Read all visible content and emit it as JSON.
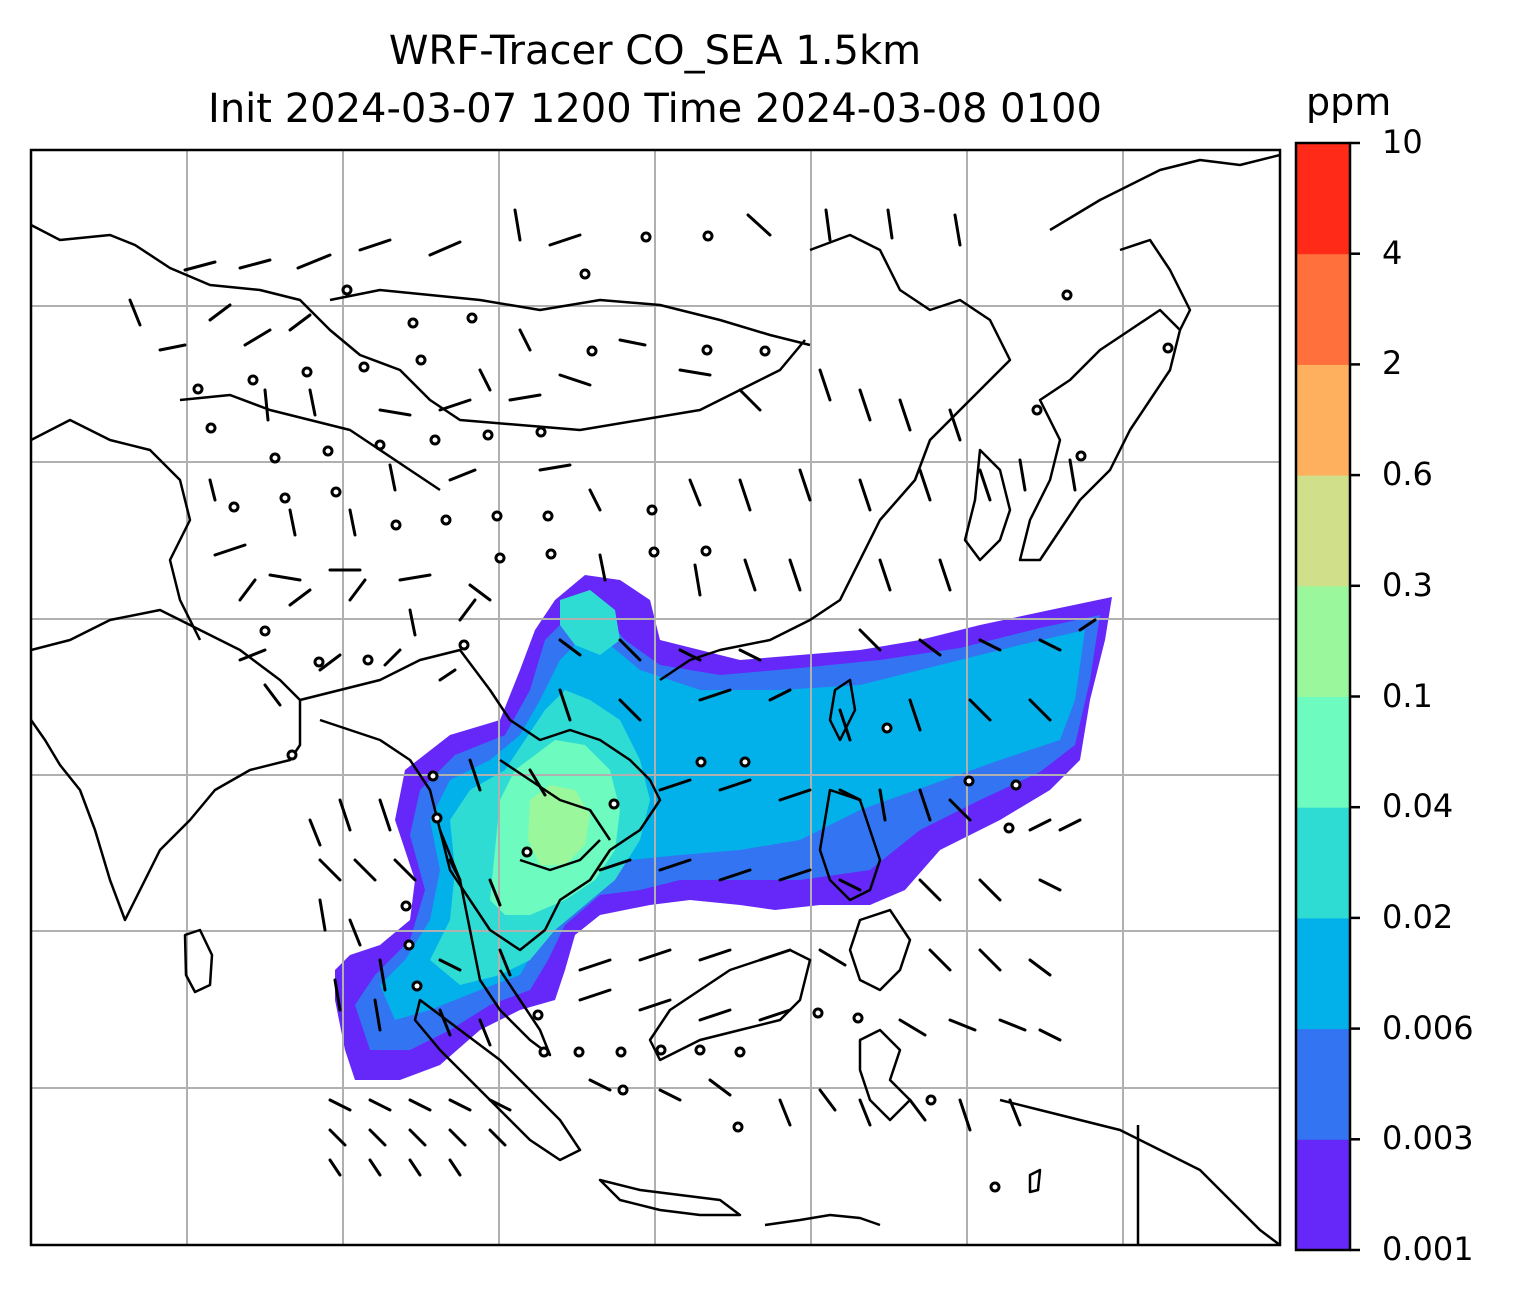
{
  "title": {
    "line1": "WRF-Tracer CO_SEA 1.5km",
    "line2": "Init 2024-03-07 1200 Time 2024-03-08 0100"
  },
  "colorbar": {
    "unit": "ppm",
    "levels": [
      "0.001",
      "0.003",
      "0.006",
      "0.02",
      "0.04",
      "0.1",
      "0.3",
      "0.6",
      "2",
      "4",
      "10"
    ],
    "colors": [
      "#6528f8",
      "#3374f2",
      "#02b1ea",
      "#2fdcd4",
      "#6dfbbf",
      "#9af79c",
      "#d0df89",
      "#ffb05f",
      "#ff703d",
      "#ff2a17"
    ]
  },
  "map": {
    "variable": "CO_SEA tracer",
    "level": "1.5km",
    "overlay": "wind barbs",
    "gridlines": true,
    "plume_color_scale": "rainbow"
  }
}
